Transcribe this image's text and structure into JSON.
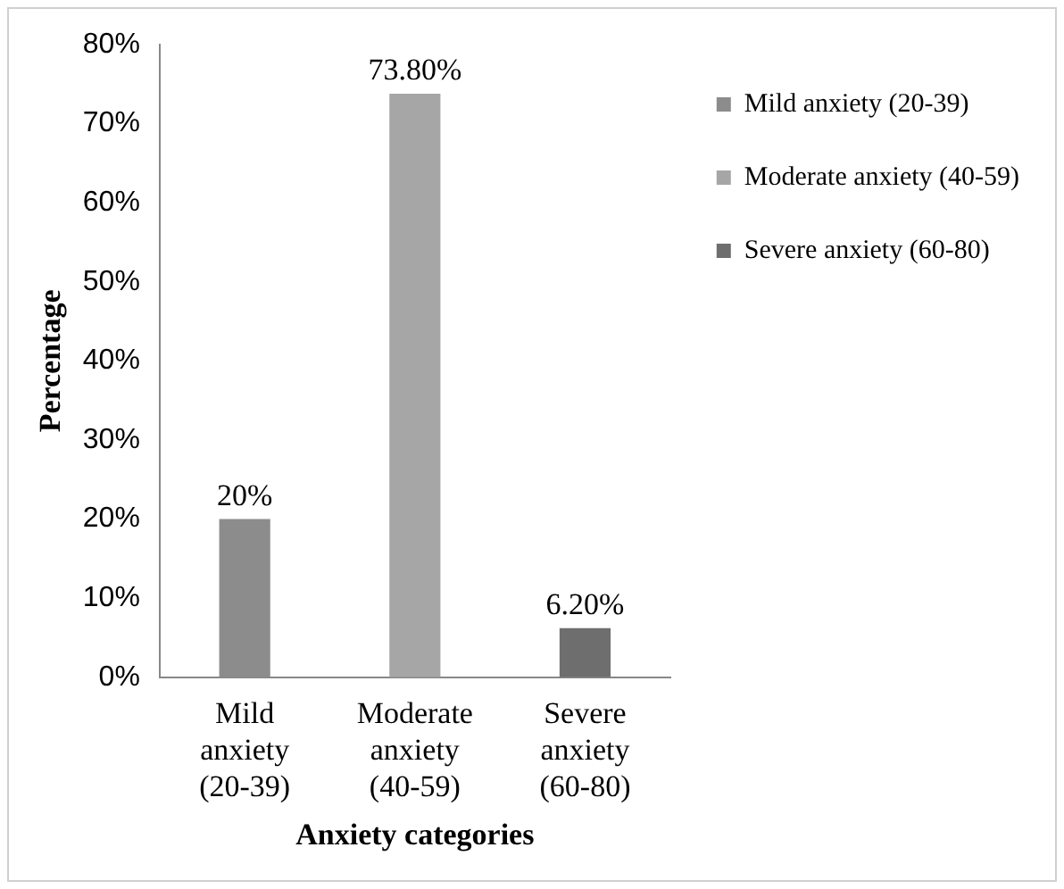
{
  "chart_data": {
    "type": "bar",
    "xlabel": "Anxiety categories",
    "ylabel": "Percentage",
    "categories": [
      "Mild anxiety (20-39)",
      "Moderate anxiety (40-59)",
      "Severe anxiety (60-80)"
    ],
    "series": [
      {
        "name": "Mild anxiety (20-39)",
        "color": "#8c8c8c",
        "values": [
          20,
          null,
          null
        ],
        "value_labels": [
          "20%",
          null,
          null
        ]
      },
      {
        "name": "Moderate anxiety (40-59)",
        "color": "#a6a6a6",
        "values": [
          null,
          73.8,
          null
        ],
        "value_labels": [
          null,
          "73.80%",
          null
        ]
      },
      {
        "name": "Severe anxiety (60-80)",
        "color": "#6e6e6e",
        "values": [
          null,
          null,
          6.2
        ],
        "value_labels": [
          null,
          null,
          "6.20%"
        ]
      }
    ],
    "ylim": [
      0,
      80
    ],
    "yticks": [
      {
        "value": 0,
        "label": "0%"
      },
      {
        "value": 10,
        "label": "10%"
      },
      {
        "value": 20,
        "label": "20%"
      },
      {
        "value": 30,
        "label": "30%"
      },
      {
        "value": 40,
        "label": "40%"
      },
      {
        "value": 50,
        "label": "50%"
      },
      {
        "value": 60,
        "label": "60%"
      },
      {
        "value": 70,
        "label": "70%"
      },
      {
        "value": 80,
        "label": "80%"
      }
    ],
    "grid": false,
    "legend": "right"
  }
}
